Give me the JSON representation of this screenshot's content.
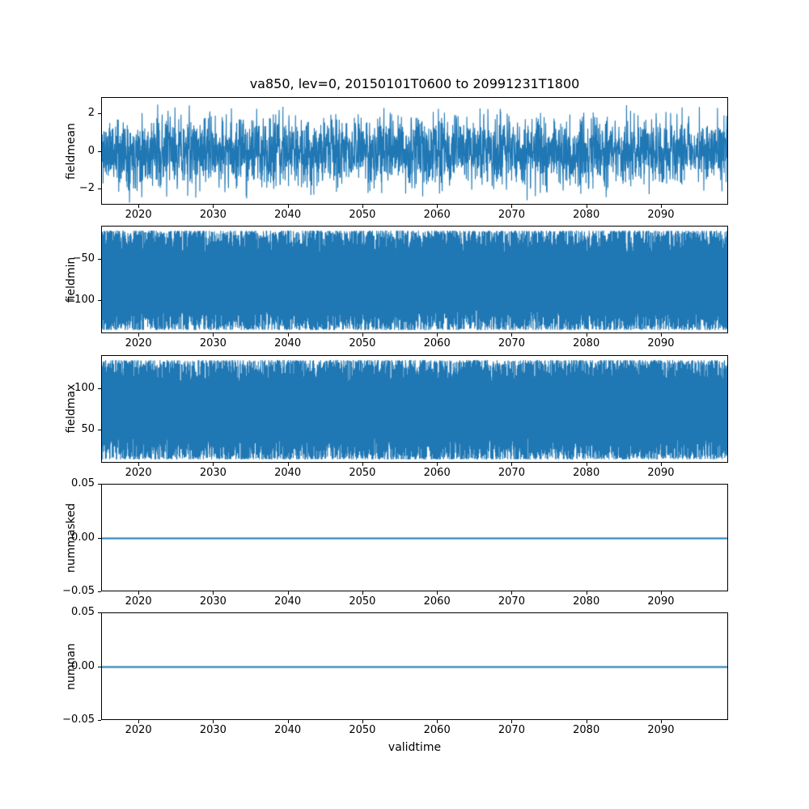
{
  "figure": {
    "title": "va850, lev=0, 20150101T0600 to 20991231T1800",
    "xlabel": "validtime"
  },
  "chart_data": {
    "type": "line",
    "title": "va850, lev=0, 20150101T0600 to 20991231T1800",
    "xlabel": "validtime",
    "x_range": [
      2015,
      2099
    ],
    "xticks": [
      2020,
      2030,
      2040,
      2050,
      2060,
      2070,
      2080,
      2090
    ],
    "xtick_labels": [
      "2020",
      "2030",
      "2040",
      "2050",
      "2060",
      "2070",
      "2080",
      "2090"
    ],
    "line_color": "#1f77b4",
    "legend": "none",
    "grid": false,
    "subplots": [
      {
        "name": "fieldmean",
        "ylabel": "fieldmean",
        "ylim": [
          -2.85,
          2.85
        ],
        "yticks": [
          {
            "value": 2,
            "label": "2"
          },
          {
            "value": 0,
            "label": "0"
          },
          {
            "value": -2,
            "label": "−2"
          }
        ],
        "series": {
          "pattern": "dense-noise",
          "distribution": "gaussian",
          "mean": 0,
          "std": 0.95,
          "observed_range": [
            -2.75,
            2.75
          ],
          "points": 2800,
          "seed": 11
        }
      },
      {
        "name": "fieldmin",
        "ylabel": "fieldmin",
        "ylim": [
          -140,
          -10
        ],
        "yticks": [
          {
            "value": -50,
            "label": "−50"
          },
          {
            "value": -100,
            "label": "−100"
          }
        ],
        "series": {
          "pattern": "dense-band",
          "band_edge_near": -15,
          "band_edge_far": -135,
          "edge_jitter": 26,
          "points": 3000,
          "seed": 22
        }
      },
      {
        "name": "fieldmax",
        "ylabel": "fieldmax",
        "ylim": [
          10,
          140
        ],
        "yticks": [
          {
            "value": 100,
            "label": "100"
          },
          {
            "value": 50,
            "label": "50"
          }
        ],
        "series": {
          "pattern": "dense-band",
          "band_edge_near": 135,
          "band_edge_far": 15,
          "edge_jitter": 26,
          "points": 3000,
          "seed": 33
        }
      },
      {
        "name": "nummasked",
        "ylabel": "nummasked",
        "ylim": [
          -0.05,
          0.05
        ],
        "yticks": [
          {
            "value": 0.05,
            "label": "0.05"
          },
          {
            "value": 0,
            "label": "0.00"
          },
          {
            "value": -0.05,
            "label": "−0.05"
          }
        ],
        "series": {
          "pattern": "constant",
          "value": 0
        }
      },
      {
        "name": "numnan",
        "ylabel": "numnan",
        "ylim": [
          -0.05,
          0.05
        ],
        "yticks": [
          {
            "value": 0.05,
            "label": "0.05"
          },
          {
            "value": 0,
            "label": "0.00"
          },
          {
            "value": -0.05,
            "label": "−0.05"
          }
        ],
        "series": {
          "pattern": "constant",
          "value": 0
        }
      }
    ]
  }
}
